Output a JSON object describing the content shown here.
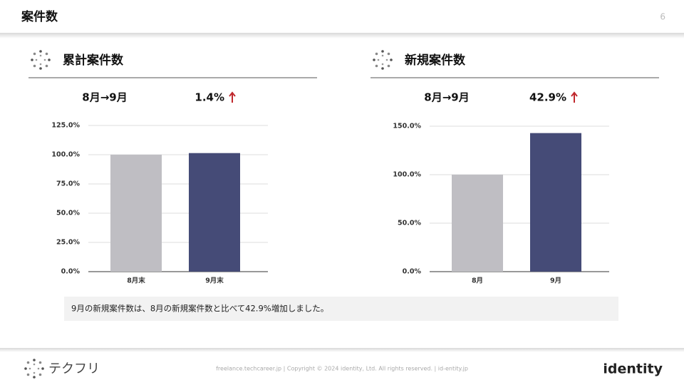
{
  "header": {
    "title": "案件数",
    "page": "6"
  },
  "chart_data": [
    {
      "type": "bar",
      "title": "累計案件数",
      "comparison": "8月→9月",
      "change": "1.4%",
      "categories": [
        "8月末",
        "9月末"
      ],
      "values": [
        100,
        101.4
      ],
      "colors": [
        "#bfbec3",
        "#454b77"
      ],
      "ylim": [
        0,
        125
      ],
      "yticks": [
        {
          "value": 0,
          "label": "0.0%"
        },
        {
          "value": 25,
          "label": "25.0%"
        },
        {
          "value": 50,
          "label": "50.0%"
        },
        {
          "value": 75,
          "label": "75.0%"
        },
        {
          "value": 100,
          "label": "100.0%"
        },
        {
          "value": 125,
          "label": "125.0%"
        }
      ],
      "grid": true
    },
    {
      "type": "bar",
      "title": "新規案件数",
      "comparison": "8月→9月",
      "change": "42.9%",
      "categories": [
        "8月",
        "9月"
      ],
      "values": [
        100,
        142.9
      ],
      "colors": [
        "#bfbec3",
        "#454b77"
      ],
      "ylim": [
        0,
        150
      ],
      "yticks": [
        {
          "value": 0,
          "label": "0.0%"
        },
        {
          "value": 50,
          "label": "50.0%"
        },
        {
          "value": 100,
          "label": "100.0%"
        },
        {
          "value": 150,
          "label": "150.0%"
        }
      ],
      "grid": true
    }
  ],
  "note": "9月の新規案件数は、8月の新規案件数と比べて42.9%増加しました。",
  "footer": {
    "logo": "テクフリ",
    "links": "freelance.techcareer.jp | Copyright © 2024 identity, Ltd. All rights reserved. | id-entity.jp",
    "brand": "identity"
  }
}
